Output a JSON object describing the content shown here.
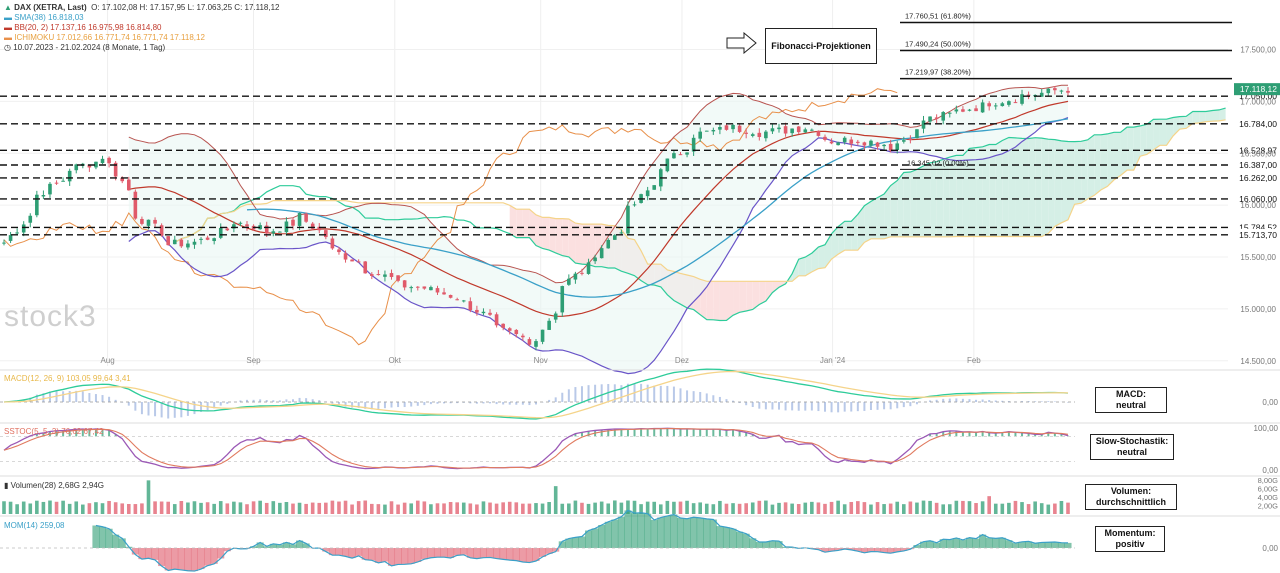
{
  "header": {
    "symbol": "DAX (XETRA, Last)",
    "ohlc": "O: 17.102,08  H: 17.157,95  L: 17.063,25  C: 17.118,12",
    "sma": "SMA(38)  16.818,03",
    "bb": "BB(20, 2)  17.137,16  16.975,98  16.814,80",
    "ichimoku": "ICHIMOKU  17.012,66  16.771,74  16.771,74  17.118,12",
    "range": "10.07.2023 - 21.02.2024  (8 Monate, 1 Tag)"
  },
  "callouts": {
    "fib_title": "Fibonacci-Projektionen",
    "macd": "MACD:\nneutral",
    "stoch": "Slow-Stochastik:\nneutral",
    "volume": "Volumen:\ndurchschnittlich",
    "momentum": "Momentum:\npositiv"
  },
  "watermark": "stock3",
  "colors": {
    "up": "#2e9e74",
    "down": "#e05a6a",
    "sma": "#3aa0c8",
    "bb_mid": "#c0392b",
    "bb_band": "#b85450",
    "bb_fill": "#e9f6f3",
    "lagging": "#e8904a",
    "cloud_green": "#d5efe6",
    "cloud_red": "#fbe0e0",
    "span_a": "#2ecc9a",
    "span_b": "#f5d48a",
    "lower_band": "#6a55c8",
    "level_line": "#111111"
  },
  "chart_data": [
    {
      "type": "line",
      "title": "DAX (XETRA, Last)",
      "x_ticks": [
        "Aug",
        "Sep",
        "Okt",
        "Nov",
        "Dez",
        "Jan '24",
        "Feb"
      ],
      "y_ticks": [
        "17.500,00",
        "17.000,00",
        "16.500,00",
        "16.000,00",
        "15.500,00",
        "15.000,00",
        "14.500,00"
      ],
      "ylim": [
        14450,
        17900
      ],
      "close_series": [
        {
          "date": "2023-07-10",
          "close": 15640
        },
        {
          "date": "2023-07-17",
          "close": 16100
        },
        {
          "date": "2023-07-24",
          "close": 16350
        },
        {
          "date": "2023-07-31",
          "close": 16470
        },
        {
          "date": "2023-08-07",
          "close": 15900
        },
        {
          "date": "2023-08-14",
          "close": 15620
        },
        {
          "date": "2023-08-21",
          "close": 15660
        },
        {
          "date": "2023-08-28",
          "close": 15840
        },
        {
          "date": "2023-09-04",
          "close": 15740
        },
        {
          "date": "2023-09-11",
          "close": 15890
        },
        {
          "date": "2023-09-18",
          "close": 15560
        },
        {
          "date": "2023-09-25",
          "close": 15380
        },
        {
          "date": "2023-10-02",
          "close": 15230
        },
        {
          "date": "2023-10-09",
          "close": 15180
        },
        {
          "date": "2023-10-16",
          "close": 15060
        },
        {
          "date": "2023-10-23",
          "close": 14800
        },
        {
          "date": "2023-10-30",
          "close": 14650
        },
        {
          "date": "2023-11-06",
          "close": 15230
        },
        {
          "date": "2023-11-13",
          "close": 15540
        },
        {
          "date": "2023-11-20",
          "close": 15950
        },
        {
          "date": "2023-11-27",
          "close": 16380
        },
        {
          "date": "2023-12-04",
          "close": 16680
        },
        {
          "date": "2023-12-11",
          "close": 16750
        },
        {
          "date": "2023-12-18",
          "close": 16700
        },
        {
          "date": "2023-12-27",
          "close": 16750
        },
        {
          "date": "2024-01-02",
          "close": 16620
        },
        {
          "date": "2024-01-08",
          "close": 16630
        },
        {
          "date": "2024-01-15",
          "close": 16560
        },
        {
          "date": "2024-01-22",
          "close": 16820
        },
        {
          "date": "2024-01-29",
          "close": 16910
        },
        {
          "date": "2024-02-05",
          "close": 16990
        },
        {
          "date": "2024-02-12",
          "close": 17060
        },
        {
          "date": "2024-02-21",
          "close": 17118
        }
      ],
      "horizontal_levels": [
        {
          "label": "17.050,00",
          "value": 17050
        },
        {
          "label": "16.784,00",
          "value": 16784
        },
        {
          "label": "16.528,97",
          "value": 16529
        },
        {
          "label": "16.387,00",
          "value": 16387
        },
        {
          "label": "16.262,00",
          "value": 16262
        },
        {
          "label": "16.060,00",
          "value": 16060
        },
        {
          "label": "15.784,52",
          "value": 15785
        },
        {
          "label": "15.713,70",
          "value": 15714
        }
      ],
      "fibonacci": [
        {
          "label": "17.760,51 (61.80%)",
          "value": 17760.51
        },
        {
          "label": "17.490,24 (50.00%)",
          "value": 17490.24
        },
        {
          "label": "17.219,97 (38.20%)",
          "value": 17219.97
        },
        {
          "label": "16.345,02 (0.00%)",
          "value": 16345.02
        }
      ],
      "last_price_label": "17.118,12"
    },
    {
      "type": "line",
      "title": "MACD(12, 26, 9)  103,05  99,64  3,41",
      "y_ticks": [
        "0,00"
      ],
      "ylim": [
        -200,
        200
      ]
    },
    {
      "type": "line",
      "title": "SSTOC(5, 5, 3)  76,62  67,42",
      "y_ticks": [
        "100,00",
        "0,00"
      ],
      "ylim": [
        0,
        100
      ]
    },
    {
      "type": "bar",
      "title": "Volumen(28)  2,68G  2,94G",
      "y_ticks": [
        "8,00G",
        "6,00G",
        "4,00G",
        "2,00G"
      ],
      "ylim": [
        0,
        8
      ]
    },
    {
      "type": "area",
      "title": "MOM(14)  259,08",
      "y_ticks": [
        "0,00"
      ],
      "ylim": [
        -800,
        800
      ]
    }
  ]
}
